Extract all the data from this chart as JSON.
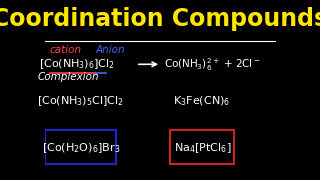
{
  "bg_color": "#000000",
  "title": "Coordination Compounds",
  "title_color": "#FFE600",
  "title_fontsize": 18,
  "cation_text": "cation",
  "cation_color": "#FF4444",
  "anion_text": "Anion",
  "anion_color": "#4466FF",
  "complexion_text": "Complexion",
  "complexion_color": "#FFFFFF",
  "line_color": "#FFFFFF",
  "text_color": "#FFFFFF",
  "formula1": "[Co(NH$_3$)$_6$]Cl$_2$",
  "formula2": "Co(NH$_3$)$_6^{2+}$ + 2Cl$^-$",
  "formula3": "[Co(NH$_3$)$_5$Cl]Cl$_2$",
  "formula4": "K$_3$Fe(CN)$_6$",
  "formula5": "[Co(H$_2$O)$_6$]Br$_3$",
  "formula6": "Na$_4$[PtCl$_6$]",
  "box1_color": "#2222CC",
  "box2_color": "#CC2222",
  "font_size_formula": 8.0,
  "font_size_label": 7.5,
  "font_size_title": 17
}
